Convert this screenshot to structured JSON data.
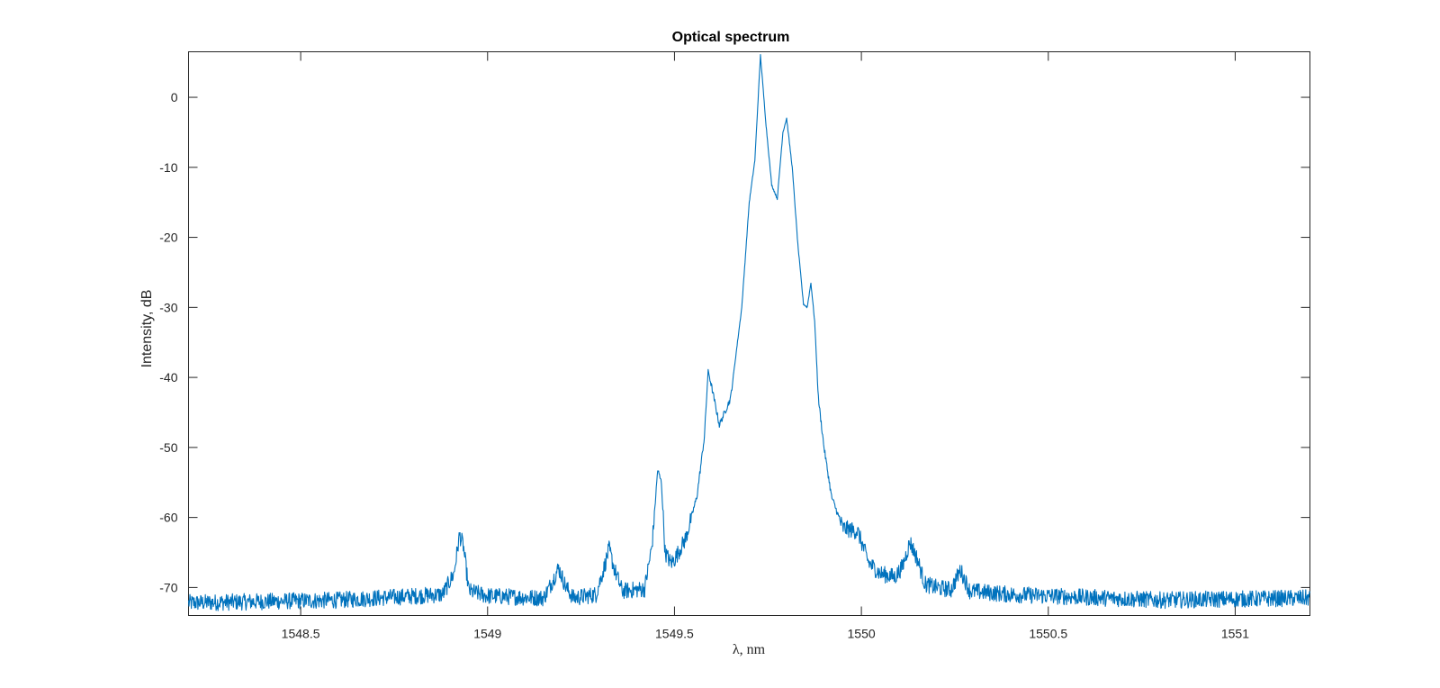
{
  "chart_data": {
    "type": "line",
    "title": "Optical spectrum",
    "xlabel": "λ, nm",
    "ylabel": "Intensity, dB",
    "xlim": [
      1548.2,
      1551.2
    ],
    "ylim": [
      -74,
      6.5
    ],
    "grid": false,
    "x_ticks": [
      1548.5,
      1549,
      1549.5,
      1550,
      1550.5,
      1551
    ],
    "x_tick_labels": [
      "1548.5",
      "1549",
      "1549.5",
      "1550",
      "1550.5",
      "1551"
    ],
    "y_ticks": [
      0,
      -10,
      -20,
      -30,
      -40,
      -50,
      -60,
      -70
    ],
    "y_tick_labels": [
      "0",
      "-10",
      "-20",
      "-30",
      "-40",
      "-50",
      "-60",
      "-70"
    ],
    "series": [
      {
        "color": "#0072BD",
        "noise_level_db": 1.2,
        "x": [
          1548.2,
          1548.6,
          1548.88,
          1548.91,
          1548.925,
          1548.935,
          1548.95,
          1549.0,
          1549.15,
          1549.17,
          1549.19,
          1549.21,
          1549.23,
          1549.29,
          1549.31,
          1549.325,
          1549.34,
          1549.36,
          1549.42,
          1549.44,
          1549.455,
          1549.465,
          1549.475,
          1549.49,
          1549.5,
          1549.53,
          1549.56,
          1549.58,
          1549.59,
          1549.6,
          1549.62,
          1549.65,
          1549.68,
          1549.7,
          1549.715,
          1549.73,
          1549.745,
          1549.76,
          1549.775,
          1549.79,
          1549.8,
          1549.815,
          1549.83,
          1549.845,
          1549.855,
          1549.865,
          1549.875,
          1549.885,
          1549.9,
          1549.92,
          1549.95,
          1549.99,
          1550.0,
          1550.02,
          1550.05,
          1550.09,
          1550.11,
          1550.13,
          1550.15,
          1550.17,
          1550.2,
          1550.24,
          1550.265,
          1550.29,
          1550.4,
          1550.8,
          1551.2
        ],
        "y": [
          -72.2,
          -71.8,
          -71.0,
          -68.0,
          -62.5,
          -64.0,
          -70.5,
          -71.2,
          -71.5,
          -69.5,
          -67.2,
          -70.0,
          -71.5,
          -71.0,
          -67.5,
          -64.5,
          -67.5,
          -70.5,
          -70.2,
          -64.0,
          -53.2,
          -55.0,
          -65.0,
          -66.5,
          -66.0,
          -63.0,
          -57.0,
          -48.5,
          -39.0,
          -41.5,
          -46.8,
          -43.0,
          -30.0,
          -15.0,
          -9.0,
          6.0,
          -4.0,
          -12.5,
          -14.5,
          -5.0,
          -3.0,
          -10.0,
          -21.0,
          -29.5,
          -30.0,
          -26.5,
          -32.0,
          -43.0,
          -50.0,
          -57.0,
          -61.5,
          -62.0,
          -63.5,
          -66.5,
          -68.0,
          -68.5,
          -67.0,
          -63.5,
          -66.0,
          -69.5,
          -70.0,
          -70.3,
          -67.5,
          -70.5,
          -71.0,
          -71.8,
          -71.5
        ]
      }
    ]
  }
}
